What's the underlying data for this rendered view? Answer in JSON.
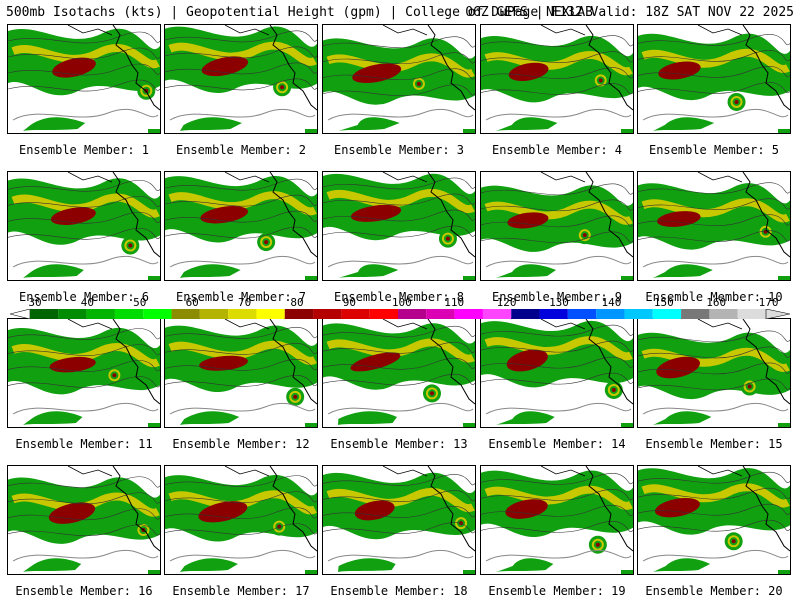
{
  "title": {
    "left": "500mb Isotachs (kts) | Geopotential Height (gpm) | College of DuPage NEXLAB",
    "right": "06Z GEFS | F132 Valid: 18Z SAT NOV 22 2025"
  },
  "colorbar": {
    "labels": [
      "30",
      "40",
      "50",
      "60",
      "70",
      "80",
      "90",
      "100",
      "110",
      "120",
      "130",
      "140",
      "150",
      "160",
      "170"
    ],
    "colors": [
      "#006400",
      "#008c00",
      "#00b400",
      "#00dc00",
      "#00ff00",
      "#8c8c00",
      "#b4b400",
      "#dcdc00",
      "#ffff00",
      "#8c0000",
      "#b40000",
      "#dc0000",
      "#ff0000",
      "#b4008c",
      "#dc00b4",
      "#ff00ff",
      "#ff44ff",
      "#00008c",
      "#0000dc",
      "#0050ff",
      "#0096ff",
      "#00c8ff",
      "#00ffff",
      "#787878",
      "#b4b4b4",
      "#dcdcdc"
    ]
  },
  "members": [
    "Ensemble Member: 1",
    "Ensemble Member: 2",
    "Ensemble Member: 3",
    "Ensemble Member: 4",
    "Ensemble Member: 5",
    "Ensemble Member: 6",
    "Ensemble Member: 7",
    "Ensemble Member: 8",
    "Ensemble Member: 9",
    "Ensemble Member: 10",
    "Ensemble Member: 11",
    "Ensemble Member: 12",
    "Ensemble Member: 13",
    "Ensemble Member: 14",
    "Ensemble Member: 15",
    "Ensemble Member: 16",
    "Ensemble Member: 17",
    "Ensemble Member: 18",
    "Ensemble Member: 19",
    "Ensemble Member: 20"
  ]
}
